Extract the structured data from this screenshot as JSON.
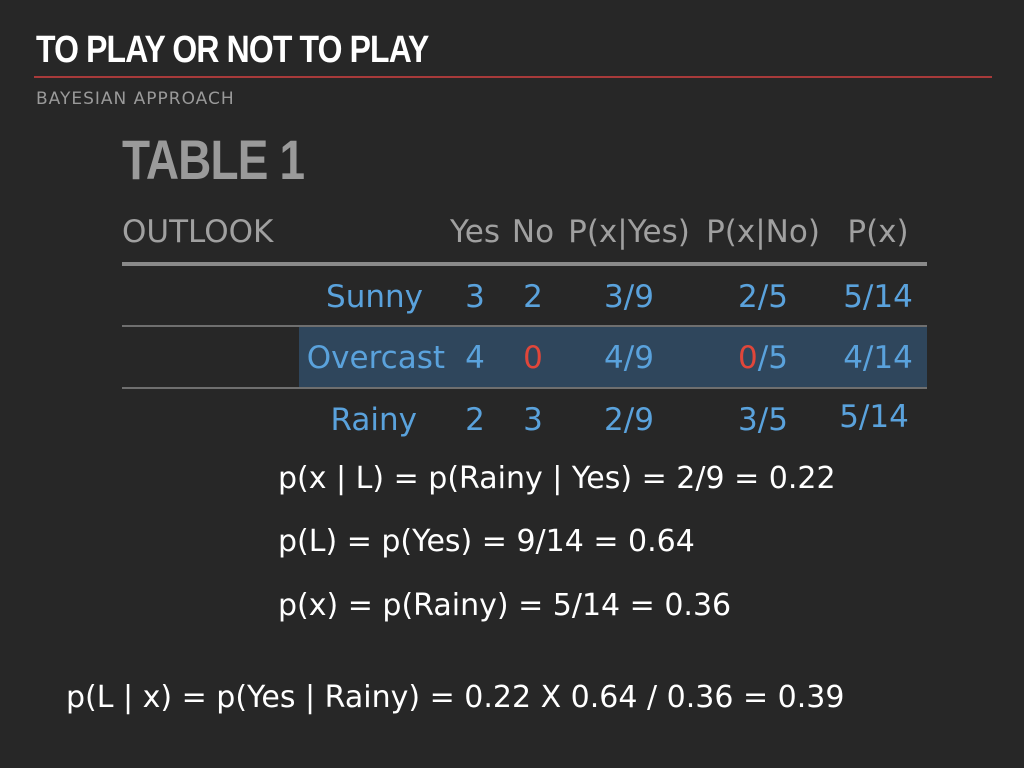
{
  "slide": {
    "title": "TO PLAY OR NOT TO PLAY",
    "subtitle": "BAYESIAN APPROACH",
    "table_heading": "TABLE 1"
  },
  "colors": {
    "background": "#272727",
    "title_rule": "#a83a3a",
    "value_blue": "#5aa2dc",
    "zero_red": "#e0463a",
    "highlight_row": "#2f465c"
  },
  "table": {
    "headers": {
      "outlook": "OUTLOOK",
      "yes": "Yes",
      "no": "No",
      "p_x_yes": "P(x|Yes)",
      "p_x_no": "P(x|No)",
      "p_x": "P(x)"
    },
    "rows": [
      {
        "outlook": "Sunny",
        "yes": "3",
        "no": "2",
        "p_x_yes": "3/9",
        "p_x_no": "2/5",
        "p_x_no_num": "2",
        "p_x_no_den": "/5",
        "p_x": "5/14",
        "highlighted": false
      },
      {
        "outlook": "Overcast",
        "yes": "4",
        "no": "0",
        "p_x_yes": "4/9",
        "p_x_no": "0/5",
        "p_x_no_num": "0",
        "p_x_no_den": "/5",
        "p_x": "4/14",
        "highlighted": true
      },
      {
        "outlook": "Rainy",
        "yes": "2",
        "no": "3",
        "p_x_yes": "2/9",
        "p_x_no": "3/5",
        "p_x_no_num": "3",
        "p_x_no_den": "/5",
        "p_x": "5/14",
        "highlighted": false
      }
    ]
  },
  "formulas": {
    "likelihood": "p(x | L) = p(Rainy | Yes) = 2/9 = 0.22",
    "prior": "p(L) = p(Yes) = 9/14 = 0.64",
    "evidence": "p(x) = p(Rainy) = 5/14 = 0.36",
    "posterior": "p(L | x) = p(Yes | Rainy) = 0.22 X 0.64 / 0.36 = 0.39"
  }
}
